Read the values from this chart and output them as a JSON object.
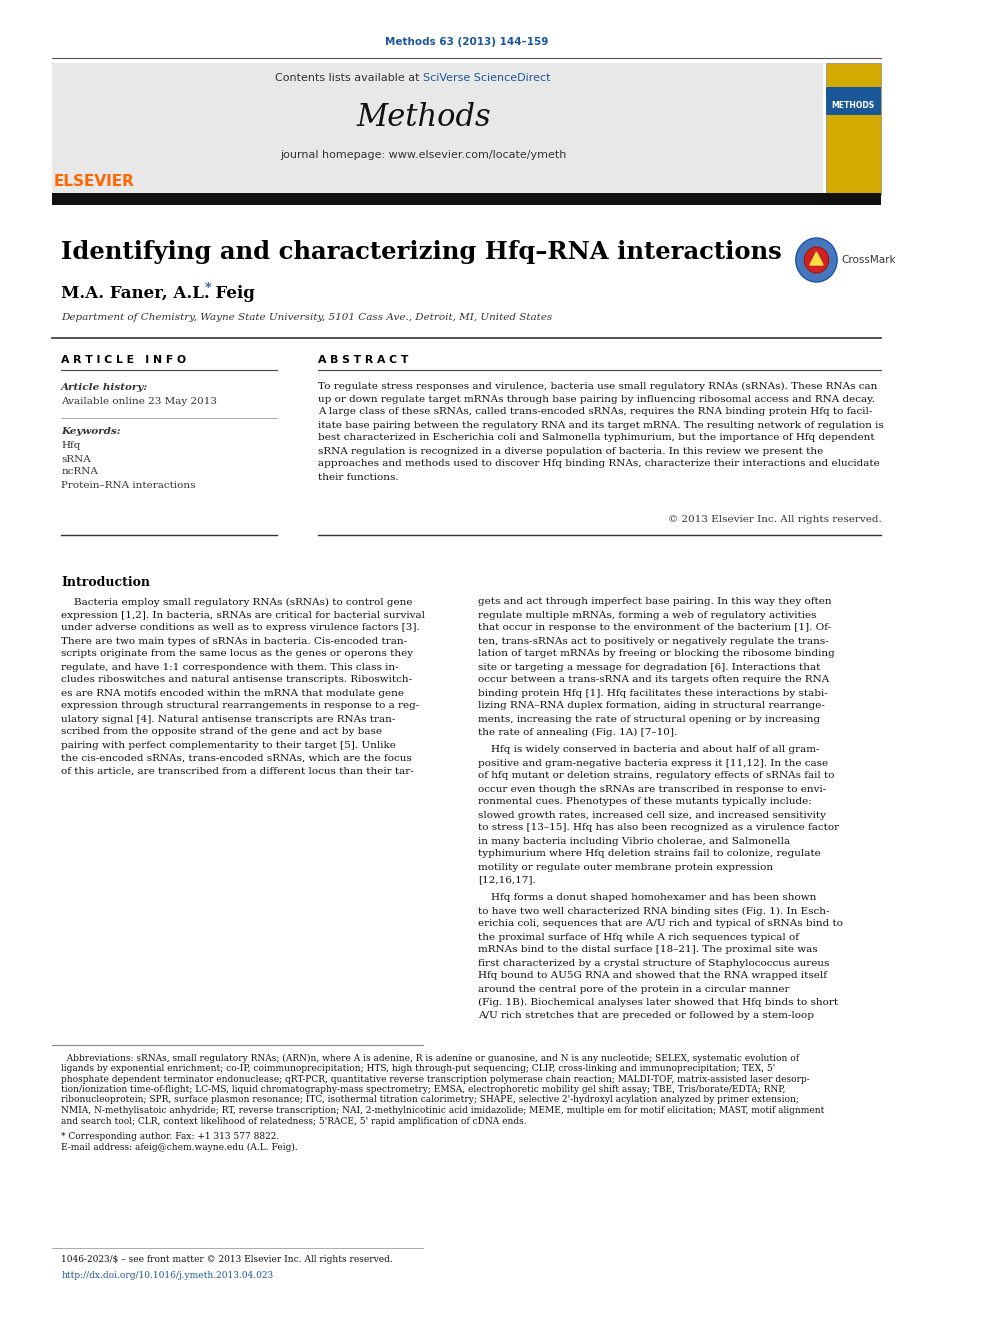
{
  "journal_ref": "Methods 63 (2013) 144–159",
  "journal_ref_color": "#1a5799",
  "header_bg": "#e8e8e8",
  "contents_text": "Contents lists available at ",
  "sciverse_text": "SciVerse ScienceDirect",
  "sciverse_color": "#1a5799",
  "journal_name": "Methods",
  "journal_homepage": "journal homepage: www.elsevier.com/locate/ymeth",
  "elsevier_color": "#FF6600",
  "paper_title": "Identifying and characterizing Hfq–RNA interactions",
  "authors": "M.A. Faner, A.L. Feig",
  "author_star": "*",
  "affiliation": "Department of Chemistry, Wayne State University, 5101 Cass Ave., Detroit, MI, United States",
  "article_info_label": "A R T I C L E   I N F O",
  "abstract_label": "A B S T R A C T",
  "article_history_label": "Article history:",
  "available_online": "Available online 23 May 2013",
  "keywords_label": "Keywords:",
  "keywords": [
    "Hfq",
    "sRNA",
    "ncRNA",
    "Protein–RNA interactions"
  ],
  "copyright": "© 2013 Elsevier Inc. All rights reserved.",
  "intro_heading": "Introduction",
  "footnote_star": "* Corresponding author. Fax: +1 313 577 8822.",
  "footnote_email": "E-mail address: afeig@chem.wayne.edu (A.L. Feig).",
  "issn_line": "1046-2023/$ – see front matter © 2013 Elsevier Inc. All rights reserved.",
  "doi_line": "http://dx.doi.org/10.1016/j.ymeth.2013.04.023",
  "doi_color": "#1a5799",
  "bg_color": "#ffffff",
  "text_color": "#000000"
}
